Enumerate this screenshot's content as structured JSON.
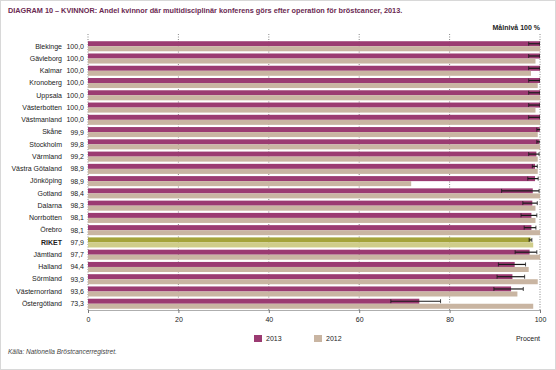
{
  "chart_data": {
    "type": "bar",
    "orientation": "horizontal",
    "title": "DIAGRAM 10 – KVINNOR: Andel kvinnor där multidisciplinär konferens görs efter operation för bröstcancer, 2013.",
    "annotations": [
      "Målnivå 100 %"
    ],
    "source": "Källa: Nationella Bröstcancerregistret.",
    "x_label": "Procent",
    "categories": [
      "Blekinge",
      "Gävleborg",
      "Kalmar",
      "Kronoberg",
      "Uppsala",
      "Västerbotten",
      "Västmanland",
      "Skåne",
      "Stockholm",
      "Värmland",
      "Västra Götaland",
      "Jönköping",
      "Gotland",
      "Dalarna",
      "Norrbotten",
      "Örebro",
      "RIKET",
      "Jämtland",
      "Halland",
      "Sörmland",
      "Västernorrland",
      "Östergötland"
    ],
    "series": [
      {
        "name": "2013",
        "color": "#9b3b72",
        "colors": [
          "#9b3b72",
          "#9b3b72",
          "#9b3b72",
          "#9b3b72",
          "#9b3b72",
          "#9b3b72",
          "#9b3b72",
          "#9b3b72",
          "#9b3b72",
          "#9b3b72",
          "#9b3b72",
          "#9b3b72",
          "#9b3b72",
          "#9b3b72",
          "#9b3b72",
          "#9b3b72",
          "#a4a33a",
          "#9b3b72",
          "#9b3b72",
          "#9b3b72",
          "#9b3b72",
          "#9b3b72"
        ],
        "values": [
          100.0,
          100.0,
          100.0,
          100.0,
          100.0,
          100.0,
          100.0,
          99.9,
          99.8,
          99.2,
          98.9,
          98.9,
          98.4,
          98.3,
          98.1,
          98.1,
          97.9,
          97.7,
          94.4,
          93.9,
          93.6,
          73.3
        ],
        "value_labels": [
          "100,0",
          "100,0",
          "100,0",
          "100,0",
          "100,0",
          "100,0",
          "100,0",
          "99,9",
          "99,8",
          "99,2",
          "98,9",
          "98,9",
          "98,4",
          "98,3",
          "98,1",
          "98,1",
          "97,9",
          "97,7",
          "94,4",
          "93,9",
          "93,6",
          "73,3"
        ],
        "ci_low": [
          97.5,
          97.5,
          97.5,
          97.5,
          97.5,
          97.5,
          97.5,
          99.3,
          99.3,
          97.5,
          98.3,
          97.3,
          91.5,
          96.2,
          95.8,
          96.5,
          97.6,
          94.5,
          90.8,
          90.5,
          89.8,
          67.0
        ],
        "ci_high": [
          100.0,
          100.0,
          100.0,
          100.0,
          100.0,
          100.0,
          100.0,
          100.0,
          100.0,
          99.8,
          99.4,
          99.6,
          99.8,
          99.4,
          99.3,
          99.1,
          98.2,
          99.3,
          96.8,
          96.6,
          96.3,
          78.0
        ]
      },
      {
        "name": "2012",
        "color": "#c9b5a2",
        "colors": [
          "#c9b5a2",
          "#c9b5a2",
          "#c9b5a2",
          "#c9b5a2",
          "#c9b5a2",
          "#c9b5a2",
          "#c9b5a2",
          "#c9b5a2",
          "#c9b5a2",
          "#c9b5a2",
          "#c9b5a2",
          "#c9b5a2",
          "#c9b5a2",
          "#c9b5a2",
          "#c9b5a2",
          "#c9b5a2",
          "#cfcd8a",
          "#c9b5a2",
          "#c9b5a2",
          "#c9b5a2",
          "#c9b5a2",
          "#c9b5a2"
        ],
        "values": [
          100.0,
          99.0,
          98.0,
          99.5,
          100.0,
          99.0,
          100.0,
          99.5,
          100.0,
          99.5,
          99.5,
          71.5,
          100.0,
          99.0,
          99.0,
          100.0,
          98.5,
          100.0,
          97.5,
          99.5,
          95.0,
          98.5
        ]
      }
    ],
    "xlim": [
      0,
      100
    ],
    "xticks": [
      0,
      20,
      40,
      60,
      80,
      100
    ],
    "grid": true,
    "data_labels": true,
    "legend": "bottom"
  }
}
